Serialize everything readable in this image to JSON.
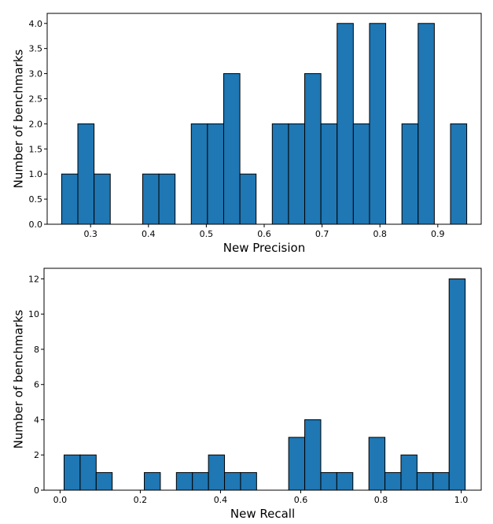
{
  "chart_data": [
    {
      "type": "bar",
      "xlabel": "New Precision",
      "ylabel": "Number of benchmarks",
      "xlim": [
        0.225,
        0.975
      ],
      "ylim": [
        0,
        4.2
      ],
      "bar_color": "#1f77b4",
      "edge_color": "#000000",
      "grid": false,
      "xticks": [
        "0.3",
        "0.4",
        "0.5",
        "0.6",
        "0.7",
        "0.8",
        "0.9"
      ],
      "xtick_values": [
        0.3,
        0.4,
        0.5,
        0.6,
        0.7,
        0.8,
        0.9
      ],
      "yticks": [
        "0.0",
        "0.5",
        "1.0",
        "1.5",
        "2.0",
        "2.5",
        "3.0",
        "3.5",
        "4.0"
      ],
      "ytick_values": [
        0,
        0.5,
        1.0,
        1.5,
        2.0,
        2.5,
        3.0,
        3.5,
        4.0
      ],
      "bins": [
        {
          "x0": 0.25,
          "x1": 0.278,
          "count": 1
        },
        {
          "x0": 0.278,
          "x1": 0.306,
          "count": 2
        },
        {
          "x0": 0.306,
          "x1": 0.334,
          "count": 1
        },
        {
          "x0": 0.334,
          "x1": 0.362,
          "count": 0
        },
        {
          "x0": 0.362,
          "x1": 0.39,
          "count": 0
        },
        {
          "x0": 0.39,
          "x1": 0.418,
          "count": 1
        },
        {
          "x0": 0.418,
          "x1": 0.446,
          "count": 1
        },
        {
          "x0": 0.446,
          "x1": 0.474,
          "count": 0
        },
        {
          "x0": 0.474,
          "x1": 0.502,
          "count": 2
        },
        {
          "x0": 0.502,
          "x1": 0.53,
          "count": 2
        },
        {
          "x0": 0.53,
          "x1": 0.558,
          "count": 3
        },
        {
          "x0": 0.558,
          "x1": 0.586,
          "count": 1
        },
        {
          "x0": 0.586,
          "x1": 0.614,
          "count": 0
        },
        {
          "x0": 0.614,
          "x1": 0.642,
          "count": 2
        },
        {
          "x0": 0.642,
          "x1": 0.67,
          "count": 2
        },
        {
          "x0": 0.67,
          "x1": 0.698,
          "count": 3
        },
        {
          "x0": 0.698,
          "x1": 0.726,
          "count": 2
        },
        {
          "x0": 0.726,
          "x1": 0.754,
          "count": 4
        },
        {
          "x0": 0.754,
          "x1": 0.782,
          "count": 2
        },
        {
          "x0": 0.782,
          "x1": 0.81,
          "count": 4
        },
        {
          "x0": 0.81,
          "x1": 0.838,
          "count": 0
        },
        {
          "x0": 0.838,
          "x1": 0.866,
          "count": 2
        },
        {
          "x0": 0.866,
          "x1": 0.894,
          "count": 4
        },
        {
          "x0": 0.894,
          "x1": 0.922,
          "count": 0
        },
        {
          "x0": 0.922,
          "x1": 0.95,
          "count": 2
        }
      ]
    },
    {
      "type": "bar",
      "xlabel": "New Recall",
      "ylabel": "Number of benchmarks",
      "xlim": [
        -0.04,
        1.05
      ],
      "ylim": [
        0,
        12.6
      ],
      "bar_color": "#1f77b4",
      "edge_color": "#000000",
      "grid": false,
      "xticks": [
        "0.0",
        "0.2",
        "0.4",
        "0.6",
        "0.8",
        "1.0"
      ],
      "xtick_values": [
        0,
        0.2,
        0.4,
        0.6,
        0.8,
        1.0
      ],
      "yticks": [
        "0",
        "2",
        "4",
        "6",
        "8",
        "10",
        "12"
      ],
      "ytick_values": [
        0,
        2,
        4,
        6,
        8,
        10,
        12
      ],
      "bins": [
        {
          "x0": 0.01,
          "x1": 0.05,
          "count": 2
        },
        {
          "x0": 0.05,
          "x1": 0.09,
          "count": 2
        },
        {
          "x0": 0.09,
          "x1": 0.13,
          "count": 1
        },
        {
          "x0": 0.13,
          "x1": 0.17,
          "count": 0
        },
        {
          "x0": 0.17,
          "x1": 0.21,
          "count": 0
        },
        {
          "x0": 0.21,
          "x1": 0.25,
          "count": 1
        },
        {
          "x0": 0.25,
          "x1": 0.29,
          "count": 0
        },
        {
          "x0": 0.29,
          "x1": 0.33,
          "count": 1
        },
        {
          "x0": 0.33,
          "x1": 0.37,
          "count": 1
        },
        {
          "x0": 0.37,
          "x1": 0.41,
          "count": 2
        },
        {
          "x0": 0.41,
          "x1": 0.45,
          "count": 1
        },
        {
          "x0": 0.45,
          "x1": 0.49,
          "count": 1
        },
        {
          "x0": 0.49,
          "x1": 0.53,
          "count": 0
        },
        {
          "x0": 0.53,
          "x1": 0.57,
          "count": 0
        },
        {
          "x0": 0.57,
          "x1": 0.61,
          "count": 3
        },
        {
          "x0": 0.61,
          "x1": 0.65,
          "count": 4
        },
        {
          "x0": 0.65,
          "x1": 0.69,
          "count": 1
        },
        {
          "x0": 0.69,
          "x1": 0.73,
          "count": 1
        },
        {
          "x0": 0.73,
          "x1": 0.77,
          "count": 0
        },
        {
          "x0": 0.77,
          "x1": 0.81,
          "count": 3
        },
        {
          "x0": 0.81,
          "x1": 0.85,
          "count": 1
        },
        {
          "x0": 0.85,
          "x1": 0.89,
          "count": 2
        },
        {
          "x0": 0.89,
          "x1": 0.93,
          "count": 1
        },
        {
          "x0": 0.93,
          "x1": 0.97,
          "count": 1
        },
        {
          "x0": 0.97,
          "x1": 1.01,
          "count": 12
        }
      ]
    }
  ]
}
